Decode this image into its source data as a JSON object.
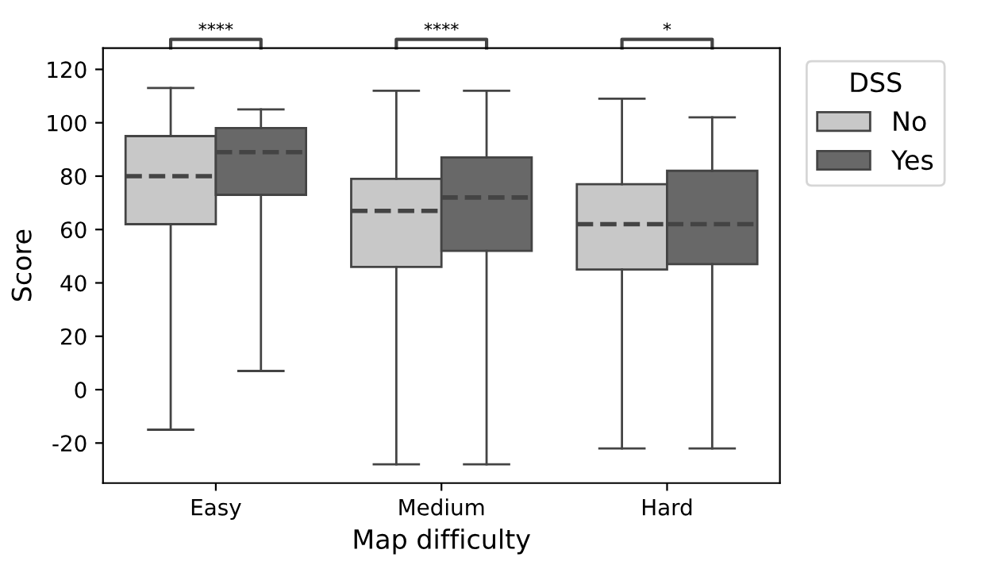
{
  "chart_data": {
    "type": "box",
    "xlabel": "Map difficulty",
    "ylabel": "Score",
    "legend_title": "DSS",
    "legend": "right",
    "categories": [
      "Easy",
      "Medium",
      "Hard"
    ],
    "ylim": [
      -35,
      128
    ],
    "yticks": [
      -20,
      0,
      20,
      40,
      60,
      80,
      100,
      120
    ],
    "grid": false,
    "series": [
      {
        "name": "No",
        "color": "#c8c8c8",
        "boxes": [
          {
            "low": -15,
            "q1": 62,
            "median": 80,
            "q3": 95,
            "high": 113
          },
          {
            "low": -28,
            "q1": 46,
            "median": 67,
            "q3": 79,
            "high": 112
          },
          {
            "low": -22,
            "q1": 45,
            "median": 62,
            "q3": 77,
            "high": 109
          }
        ]
      },
      {
        "name": "Yes",
        "color": "#686868",
        "boxes": [
          {
            "low": 7,
            "q1": 73,
            "median": 89,
            "q3": 98,
            "high": 105
          },
          {
            "low": -28,
            "q1": 52,
            "median": 72,
            "q3": 87,
            "high": 112
          },
          {
            "low": -22,
            "q1": 47,
            "median": 62,
            "q3": 82,
            "high": 102
          }
        ]
      }
    ],
    "annotations": [
      "****",
      "****",
      "*"
    ]
  }
}
